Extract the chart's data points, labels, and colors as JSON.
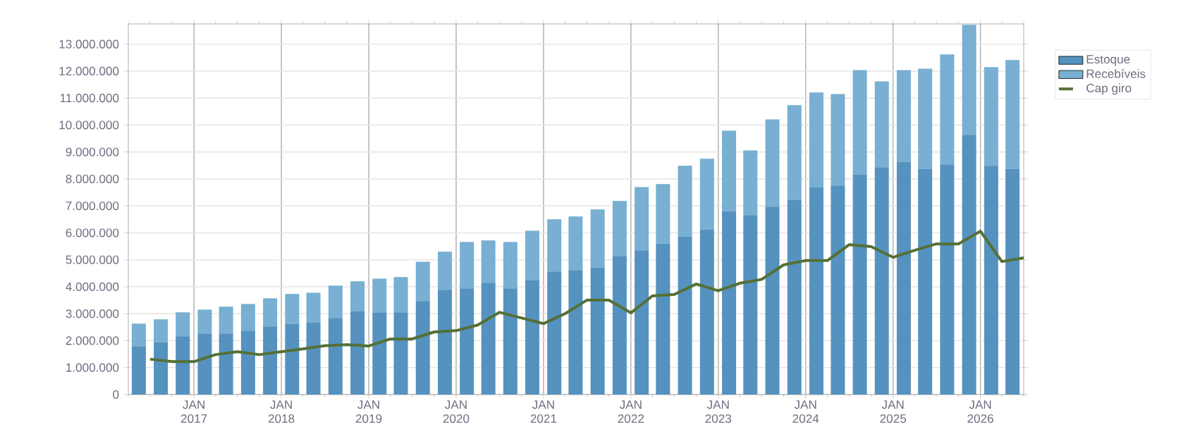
{
  "chart_data": {
    "type": "bar",
    "stacked": true,
    "grid": true,
    "legend": "top right",
    "marker": "none",
    "xlim": [
      "2016-04-01",
      "2026-07-01"
    ],
    "ylim": [
      0,
      13750000
    ],
    "xticks": [
      {
        "value": "2016-04-01",
        "label": null
      },
      {
        "value": "2016-07-01",
        "label": null
      },
      {
        "value": "2016-10-01",
        "label": null
      },
      {
        "value": "2017-01-01",
        "label": "JAN 2017"
      },
      {
        "value": "2017-04-01",
        "label": null
      },
      {
        "value": "2017-07-01",
        "label": null
      },
      {
        "value": "2017-10-01",
        "label": null
      },
      {
        "value": "2018-01-01",
        "label": "JAN 2018"
      },
      {
        "value": "2018-04-01",
        "label": null
      },
      {
        "value": "2018-07-01",
        "label": null
      },
      {
        "value": "2018-10-01",
        "label": null
      },
      {
        "value": "2019-01-01",
        "label": "JAN 2019"
      },
      {
        "value": "2019-04-01",
        "label": null
      },
      {
        "value": "2019-07-01",
        "label": null
      },
      {
        "value": "2019-10-01",
        "label": null
      },
      {
        "value": "2020-01-01",
        "label": "JAN 2020"
      },
      {
        "value": "2020-04-01",
        "label": null
      },
      {
        "value": "2020-07-01",
        "label": null
      },
      {
        "value": "2020-10-01",
        "label": null
      },
      {
        "value": "2021-01-01",
        "label": "JAN 2021"
      },
      {
        "value": "2021-04-01",
        "label": null
      },
      {
        "value": "2021-07-01",
        "label": null
      },
      {
        "value": "2021-10-01",
        "label": null
      },
      {
        "value": "2022-01-01",
        "label": "JAN 2022"
      },
      {
        "value": "2022-04-01",
        "label": null
      },
      {
        "value": "2022-07-01",
        "label": null
      },
      {
        "value": "2022-10-01",
        "label": null
      },
      {
        "value": "2023-01-01",
        "label": "JAN 2023"
      },
      {
        "value": "2023-04-01",
        "label": null
      },
      {
        "value": "2023-07-01",
        "label": null
      },
      {
        "value": "2023-10-01",
        "label": null
      },
      {
        "value": "2024-01-01",
        "label": "JAN 2024"
      },
      {
        "value": "2024-04-01",
        "label": null
      },
      {
        "value": "2024-07-01",
        "label": null
      },
      {
        "value": "2024-10-01",
        "label": null
      },
      {
        "value": "2025-01-01",
        "label": "JAN 2025"
      },
      {
        "value": "2025-04-01",
        "label": null
      },
      {
        "value": "2025-07-01",
        "label": null
      },
      {
        "value": "2025-10-01",
        "label": null
      },
      {
        "value": "2026-01-01",
        "label": "JAN 2026"
      },
      {
        "value": "2026-04-01",
        "label": null
      },
      {
        "value": "2026-07-01",
        "label": null
      }
    ],
    "yticks": [
      0,
      {
        "value": 1000000,
        "label": "1.000.000"
      },
      {
        "value": 2000000,
        "label": "2.000.000"
      },
      {
        "value": 3000000,
        "label": "3.000.000"
      },
      {
        "value": 4000000,
        "label": "4.000.000"
      },
      {
        "value": 5000000,
        "label": "5.000.000"
      },
      {
        "value": 6000000,
        "label": "6.000.000"
      },
      {
        "value": 7000000,
        "label": "7.000.000"
      },
      {
        "value": 8000000,
        "label": "8.000.000"
      },
      {
        "value": 9000000,
        "label": "9.000.000"
      },
      {
        "value": 10000000,
        "label": "10.000.000"
      },
      {
        "value": 11000000,
        "label": "11.000.000"
      },
      {
        "value": 12000000,
        "label": "12.000.000"
      },
      {
        "value": 13000000,
        "label": "13.000.000"
      }
    ],
    "series": [
      {
        "name": "Estoque",
        "color": "#5592bf",
        "x": [
          "2016-05-15",
          "2016-08-15",
          "2016-11-15",
          "2017-02-15",
          "2017-05-15",
          "2017-08-15",
          "2017-11-15",
          "2018-02-15",
          "2018-05-15",
          "2018-08-15",
          "2018-11-15",
          "2019-02-15",
          "2019-05-15",
          "2019-08-15",
          "2019-11-15",
          "2020-02-15",
          "2020-05-15",
          "2020-08-15",
          "2020-11-15",
          "2021-02-15",
          "2021-05-15",
          "2021-08-15",
          "2021-11-15",
          "2022-02-15",
          "2022-05-15",
          "2022-08-15",
          "2022-11-15",
          "2023-02-15",
          "2023-05-15",
          "2023-08-15",
          "2023-11-15",
          "2024-02-15",
          "2024-05-15",
          "2024-08-15",
          "2024-11-15",
          "2025-02-15",
          "2025-05-15",
          "2025-08-15",
          "2025-11-15",
          "2026-02-15",
          "2026-05-15"
        ],
        "values": [
          1800000,
          1950000,
          2160000,
          2270000,
          2270000,
          2370000,
          2530000,
          2630000,
          2680000,
          2840000,
          3100000,
          3050000,
          3050000,
          3470000,
          3890000,
          3940000,
          4150000,
          3940000,
          4250000,
          4570000,
          4620000,
          4720000,
          5140000,
          5350000,
          5610000,
          5870000,
          6130000,
          6810000,
          6660000,
          6970000,
          7230000,
          7700000,
          7760000,
          8170000,
          8440000,
          8640000,
          8380000,
          8540000,
          9640000,
          8490000,
          8380000
        ]
      },
      {
        "name": "Recebíveis",
        "color": "#78afd2",
        "x": [
          "2016-05-15",
          "2016-08-15",
          "2016-11-15",
          "2017-02-15",
          "2017-05-15",
          "2017-08-15",
          "2017-11-15",
          "2018-02-15",
          "2018-05-15",
          "2018-08-15",
          "2018-11-15",
          "2019-02-15",
          "2019-05-15",
          "2019-08-15",
          "2019-11-15",
          "2020-02-15",
          "2020-05-15",
          "2020-08-15",
          "2020-11-15",
          "2021-02-15",
          "2021-05-15",
          "2021-08-15",
          "2021-11-15",
          "2022-02-15",
          "2022-05-15",
          "2022-08-15",
          "2022-11-15",
          "2023-02-15",
          "2023-05-15",
          "2023-08-15",
          "2023-11-15",
          "2024-02-15",
          "2024-05-15",
          "2024-08-15",
          "2024-11-15",
          "2025-02-15",
          "2025-05-15",
          "2025-08-15",
          "2025-11-15",
          "2026-02-15",
          "2026-05-15"
        ],
        "values": [
          830000,
          840000,
          890000,
          880000,
          990000,
          990000,
          1040000,
          1100000,
          1100000,
          1200000,
          1100000,
          1250000,
          1310000,
          1460000,
          1410000,
          1720000,
          1570000,
          1720000,
          1830000,
          1930000,
          1990000,
          2150000,
          2040000,
          2350000,
          2200000,
          2620000,
          2620000,
          2980000,
          2400000,
          3240000,
          3510000,
          3510000,
          3390000,
          3870000,
          3180000,
          3400000,
          3710000,
          4080000,
          4080000,
          3660000,
          4030000
        ]
      },
      {
        "name": "Cap giro",
        "type": "line",
        "color": "#557036",
        "line_style": "solid",
        "x": [
          "2016-07-01",
          "2016-10-01",
          "2017-01-01",
          "2017-04-01",
          "2017-07-01",
          "2017-10-01",
          "2018-01-01",
          "2018-04-01",
          "2018-07-01",
          "2018-10-01",
          "2019-01-01",
          "2019-04-01",
          "2019-07-01",
          "2019-10-01",
          "2020-01-01",
          "2020-04-01",
          "2020-07-01",
          "2020-10-01",
          "2021-01-01",
          "2021-04-01",
          "2021-07-01",
          "2021-10-01",
          "2022-01-01",
          "2022-04-01",
          "2022-07-01",
          "2022-10-01",
          "2023-01-01",
          "2023-04-01",
          "2023-07-01",
          "2023-10-01",
          "2024-01-01",
          "2024-04-01",
          "2024-07-01",
          "2024-10-01",
          "2025-01-01",
          "2025-04-01",
          "2025-07-01",
          "2025-10-01",
          "2026-01-01",
          "2026-04-01",
          "2026-07-01"
        ],
        "values": [
          1310000,
          1220000,
          1220000,
          1480000,
          1590000,
          1480000,
          1590000,
          1690000,
          1810000,
          1850000,
          1800000,
          2060000,
          2060000,
          2320000,
          2370000,
          2580000,
          3050000,
          2840000,
          2630000,
          3000000,
          3500000,
          3500000,
          3030000,
          3660000,
          3710000,
          4100000,
          3850000,
          4130000,
          4270000,
          4810000,
          4970000,
          4970000,
          5560000,
          5490000,
          5090000,
          5350000,
          5590000,
          5590000,
          6060000,
          4930000,
          5070000
        ]
      }
    ]
  }
}
